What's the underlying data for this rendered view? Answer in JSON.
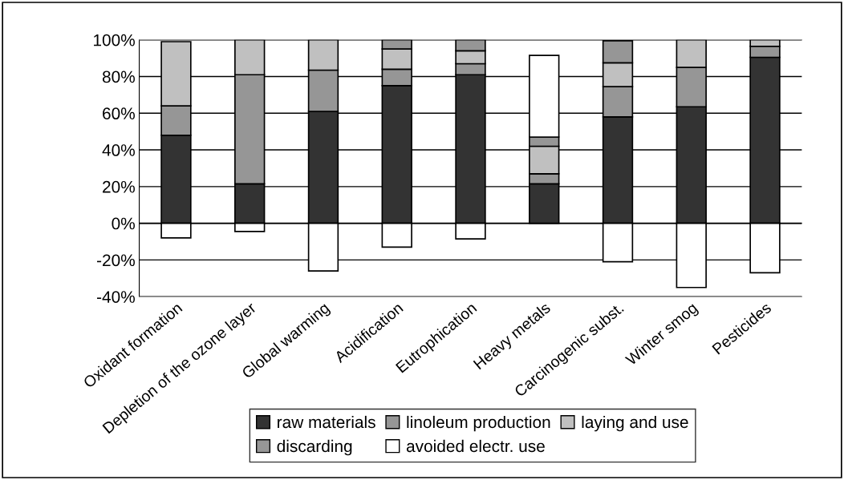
{
  "chart_data": {
    "type": "bar",
    "stacked": true,
    "categories": [
      "Oxidant formation",
      "Depletion of the ozone layer",
      "Global warming",
      "Acidification",
      "Eutrophication",
      "Heavy metals",
      "Carcinogenic subst.",
      "Winter smog",
      "Pesticides"
    ],
    "series": [
      {
        "name": "raw materials",
        "color": "#333333",
        "values": [
          48,
          21.5,
          61,
          75,
          81,
          21.5,
          58,
          63.5,
          90.5
        ]
      },
      {
        "name": "linoleum production",
        "color": "#969696",
        "values": [
          16,
          59.5,
          22.5,
          9,
          6,
          5.5,
          16.5,
          21.5,
          6
        ]
      },
      {
        "name": "laying and use",
        "color": "#c0c0c0",
        "values": [
          35,
          19,
          16.5,
          11,
          7,
          15,
          13,
          15,
          3.5
        ]
      },
      {
        "name": "discarding",
        "color": "#969696",
        "values": [
          null,
          null,
          null,
          5,
          6,
          5,
          12,
          null,
          null
        ]
      },
      {
        "name": "avoided electr. use",
        "color": "#ffffff",
        "values": [
          -8,
          -4.5,
          -26,
          -13,
          -8.5,
          44.5,
          -21,
          -35,
          -27
        ]
      }
    ],
    "ylim": [
      -40,
      100
    ],
    "yticks": [
      {
        "value": -40,
        "label": "-40%"
      },
      {
        "value": -20,
        "label": "-20%"
      },
      {
        "value": 0,
        "label": "0%"
      },
      {
        "value": 20,
        "label": "20%"
      },
      {
        "value": 40,
        "label": "40%"
      },
      {
        "value": 60,
        "label": "60%"
      },
      {
        "value": 80,
        "label": "80%"
      },
      {
        "value": 100,
        "label": "100%"
      }
    ],
    "grid": "y",
    "legend": "bottom"
  }
}
